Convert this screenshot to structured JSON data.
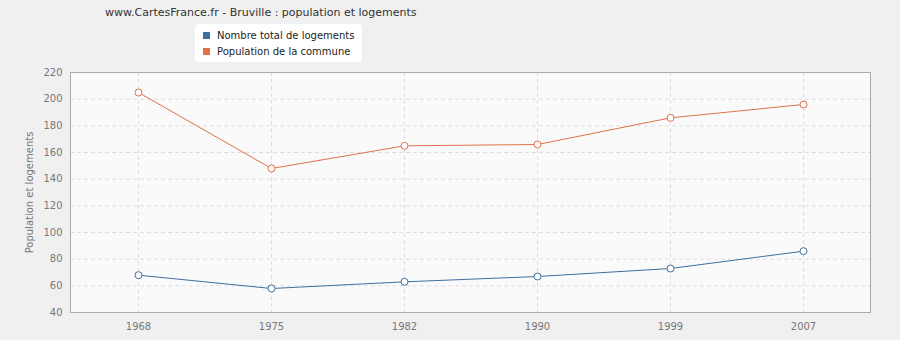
{
  "chart_data": {
    "type": "line",
    "title": "www.CartesFrance.fr - Bruville : population et logements",
    "y_label": "Population et logements",
    "categories": [
      "1968",
      "1975",
      "1982",
      "1990",
      "1999",
      "2007"
    ],
    "series": [
      {
        "name": "Nombre total de logements",
        "color": "#3e6f9e",
        "values": [
          68,
          58,
          63,
          67,
          73,
          86
        ]
      },
      {
        "name": "Population de la commune",
        "color": "#e0714a",
        "values": [
          205,
          148,
          165,
          166,
          186,
          196
        ]
      }
    ],
    "ylim": [
      40,
      220
    ],
    "yticks": [
      40,
      60,
      80,
      100,
      120,
      140,
      160,
      180,
      200,
      220
    ],
    "grid": true,
    "marker": "circle",
    "legend": "top"
  }
}
